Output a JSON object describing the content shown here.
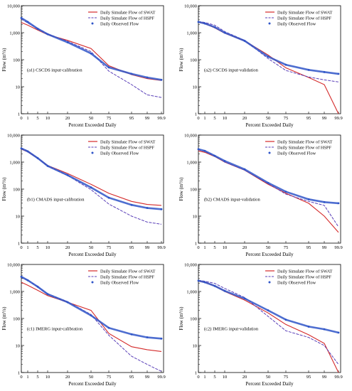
{
  "colors": {
    "swat": "#d42a2a",
    "hspf": "#5a3fb8",
    "observed": "#2f55c8"
  },
  "legend": {
    "swat": "Daily Simulate Flow of SWAT",
    "hspf": "Daily Simulate Flow of HSPF",
    "observed": "Daily Observed Flow"
  },
  "axis": {
    "xlabel": "Percent Exceeded Daily",
    "ylabel": "Flow (m³/s)",
    "xticks": [
      "0",
      "1",
      "5",
      "10",
      "20",
      "50",
      "75",
      "95",
      "99",
      "99.9"
    ],
    "yticks": [
      "1",
      "10",
      "100",
      "1,000",
      "10,000"
    ]
  },
  "chart_data": [
    {
      "type": "line",
      "panel": "a1",
      "annotation": "(a1) CSCDS input-calibration",
      "ylim": [
        1,
        10000
      ],
      "log_y": true,
      "legend_position": "top-right",
      "x": [
        0,
        1,
        5,
        10,
        20,
        50,
        75,
        95,
        99,
        99.9
      ],
      "series": [
        {
          "key": "swat",
          "values": [
            2400,
            1900,
            1250,
            850,
            520,
            260,
            60,
            28,
            20,
            17
          ]
        },
        {
          "key": "hspf",
          "values": [
            3200,
            2300,
            1400,
            900,
            480,
            200,
            38,
            12,
            5,
            4
          ]
        },
        {
          "key": "observed",
          "values": [
            3500,
            2500,
            1400,
            880,
            440,
            170,
            52,
            30,
            22,
            18
          ]
        }
      ]
    },
    {
      "type": "line",
      "panel": "a2",
      "annotation": "(a2) CSCDS input-validation",
      "ylim": [
        1,
        10000
      ],
      "log_y": true,
      "legend_position": "top-right",
      "x": [
        0,
        1,
        5,
        10,
        20,
        50,
        75,
        95,
        99,
        99.9
      ],
      "series": [
        {
          "key": "swat",
          "values": [
            2500,
            2200,
            1500,
            950,
            500,
            150,
            50,
            22,
            12,
            1
          ]
        },
        {
          "key": "hspf",
          "values": [
            2600,
            2400,
            1900,
            1100,
            520,
            110,
            40,
            23,
            18,
            15
          ]
        },
        {
          "key": "observed",
          "values": [
            2500,
            2200,
            1600,
            1000,
            500,
            130,
            65,
            42,
            35,
            30
          ]
        }
      ]
    },
    {
      "type": "line",
      "panel": "b1",
      "annotation": "(b1) CMADS input-calibration",
      "ylim": [
        1,
        10000
      ],
      "log_y": true,
      "legend_position": "top-right",
      "x": [
        0,
        1,
        5,
        10,
        20,
        50,
        75,
        95,
        99,
        99.9
      ],
      "series": [
        {
          "key": "swat",
          "values": [
            3000,
            2400,
            1400,
            750,
            380,
            150,
            70,
            35,
            27,
            25
          ]
        },
        {
          "key": "hspf",
          "values": [
            3300,
            2600,
            1400,
            700,
            320,
            95,
            28,
            10,
            6,
            5
          ]
        },
        {
          "key": "observed",
          "values": [
            3200,
            2500,
            1400,
            720,
            330,
            115,
            48,
            26,
            20,
            18
          ]
        }
      ]
    },
    {
      "type": "line",
      "panel": "b2",
      "annotation": "(b2) CMADS input-validation",
      "ylim": [
        1,
        10000
      ],
      "log_y": true,
      "legend_position": "top-right",
      "x": [
        0,
        1,
        5,
        10,
        20,
        50,
        75,
        95,
        99,
        99.9
      ],
      "series": [
        {
          "key": "swat",
          "values": [
            2600,
            2300,
            1600,
            1000,
            500,
            150,
            70,
            30,
            10,
            2.5
          ]
        },
        {
          "key": "hspf",
          "values": [
            2900,
            2500,
            1700,
            1000,
            500,
            160,
            65,
            35,
            25,
            4
          ]
        },
        {
          "key": "observed",
          "values": [
            3000,
            2600,
            1700,
            1100,
            540,
            170,
            80,
            42,
            33,
            30
          ]
        }
      ]
    },
    {
      "type": "line",
      "panel": "c1",
      "annotation": "(c1) IMERG input-calibration",
      "ylim": [
        1,
        10000
      ],
      "log_y": true,
      "legend_position": "top-right",
      "x": [
        0,
        1,
        5,
        10,
        20,
        50,
        75,
        95,
        99,
        99.9
      ],
      "series": [
        {
          "key": "swat",
          "values": [
            2200,
            1700,
            1100,
            700,
            400,
            200,
            28,
            9,
            7,
            6
          ]
        },
        {
          "key": "hspf",
          "values": [
            3300,
            2600,
            1500,
            800,
            420,
            140,
            24,
            4,
            2,
            1.1
          ]
        },
        {
          "key": "observed",
          "values": [
            3500,
            2600,
            1500,
            800,
            400,
            130,
            45,
            26,
            20,
            18
          ]
        }
      ]
    },
    {
      "type": "line",
      "panel": "c2",
      "annotation": "(c2) IMERG input-validation",
      "ylim": [
        1,
        10000
      ],
      "log_y": true,
      "legend_position": "top-right",
      "x": [
        0,
        1,
        5,
        10,
        20,
        50,
        75,
        95,
        99,
        99.9
      ],
      "series": [
        {
          "key": "swat",
          "values": [
            2400,
            2200,
            1600,
            1000,
            480,
            160,
            60,
            25,
            12,
            1
          ]
        },
        {
          "key": "hspf",
          "values": [
            2600,
            2400,
            2000,
            1300,
            600,
            120,
            35,
            20,
            10,
            2
          ]
        },
        {
          "key": "observed",
          "values": [
            2500,
            2200,
            1600,
            1050,
            550,
            200,
            90,
            50,
            40,
            30
          ]
        }
      ]
    }
  ]
}
